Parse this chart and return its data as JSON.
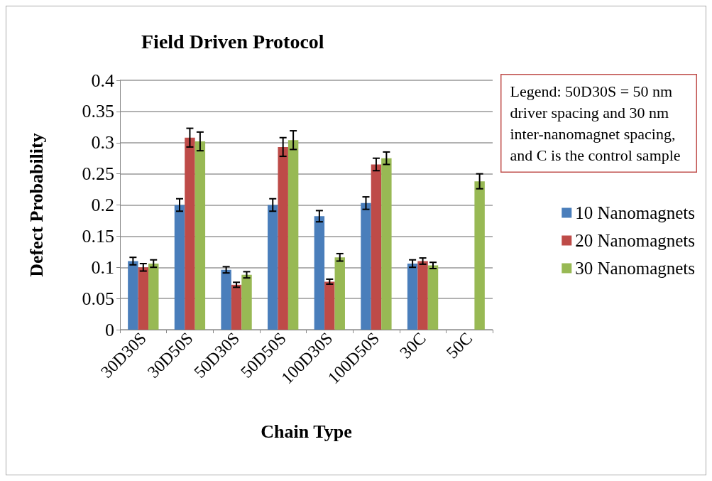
{
  "chart_data": {
    "type": "bar",
    "title": "Field Driven Protocol",
    "xlabel": "Chain Type",
    "ylabel": "Defect Probability",
    "annotations": [
      "Legend: 50D30S = 50 nm driver spacing and 30 nm inter-nanomagnet spacing, and C is the control sample"
    ],
    "categories": [
      "30D30S",
      "30D50S",
      "50D30S",
      "50D50S",
      "100D30S",
      "100D50S",
      "30C",
      "50C"
    ],
    "series": [
      {
        "name": "10 Nanomagnets",
        "color": "#4a7ebb",
        "values": [
          0.11,
          0.2,
          0.096,
          0.2,
          0.182,
          0.203,
          0.106,
          null
        ],
        "errors": [
          0.006,
          0.01,
          0.005,
          0.01,
          0.009,
          0.01,
          0.006,
          null
        ]
      },
      {
        "name": "20 Nanomagnets",
        "color": "#be4b48",
        "values": [
          0.1,
          0.308,
          0.072,
          0.293,
          0.077,
          0.265,
          0.11,
          null
        ],
        "errors": [
          0.006,
          0.015,
          0.004,
          0.015,
          0.004,
          0.01,
          0.005,
          null
        ]
      },
      {
        "name": "30 Nanomagnets",
        "color": "#98b954",
        "values": [
          0.106,
          0.302,
          0.088,
          0.304,
          0.116,
          0.275,
          0.103,
          0.238
        ],
        "errors": [
          0.006,
          0.015,
          0.005,
          0.015,
          0.006,
          0.01,
          0.005,
          0.012
        ]
      }
    ],
    "ylim": [
      0,
      0.4
    ],
    "yticks": [
      0,
      0.05,
      0.1,
      0.15,
      0.2,
      0.25,
      0.3,
      0.35,
      0.4
    ],
    "grid": "y",
    "legend": "right"
  }
}
